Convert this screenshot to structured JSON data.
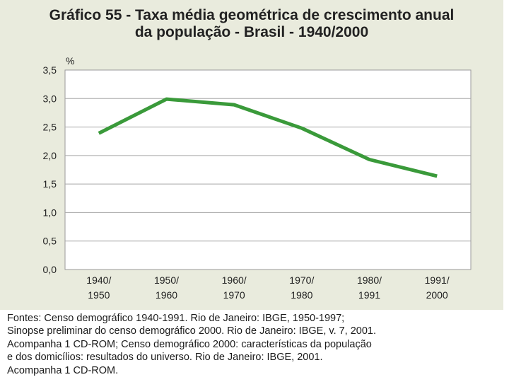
{
  "chart_data": {
    "type": "line",
    "title_line1": "Gráfico 55 - Taxa média geométrica de crescimento anual",
    "title_line2": "da população - Brasil - 1940/2000",
    "ylabel": "%",
    "xlabel": "",
    "ylim": [
      0,
      3.5
    ],
    "y_ticks": [
      "0,0",
      "0,5",
      "1,0",
      "1,5",
      "2,0",
      "2,5",
      "3,0",
      "3,5"
    ],
    "y_tick_values": [
      0,
      0.5,
      1.0,
      1.5,
      2.0,
      2.5,
      3.0,
      3.5
    ],
    "categories": [
      [
        "1940/",
        "1950"
      ],
      [
        "1950/",
        "1960"
      ],
      [
        "1960/",
        "1970"
      ],
      [
        "1970/",
        "1980"
      ],
      [
        "1980/",
        "1991"
      ],
      [
        "1991/",
        "2000"
      ]
    ],
    "series": [
      {
        "name": "Taxa média geométrica de crescimento anual",
        "values": [
          2.39,
          2.99,
          2.89,
          2.48,
          1.93,
          1.64
        ]
      }
    ],
    "grid": true,
    "line_color": "#3a9a3a"
  },
  "source_lines": [
    "Fontes: Censo demográfico 1940-1991. Rio de Janeiro: IBGE, 1950-1997;",
    "Sinopse preliminar do censo demográfico 2000. Rio de Janeiro: IBGE, v. 7, 2001.",
    "Acompanha 1 CD-ROM; Censo demográfico 2000: características  da população",
    "e dos domicílios: resultados do universo. Rio de Janeiro: IBGE, 2001.",
    "Acompanha 1 CD-ROM."
  ]
}
